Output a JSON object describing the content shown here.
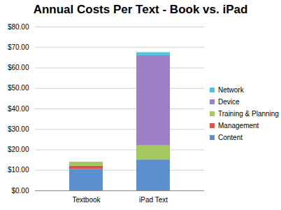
{
  "chart_data": {
    "type": "bar",
    "title": "Annual Costs Per Text - Book vs. iPad",
    "categories": [
      "Textbook",
      "iPad Text"
    ],
    "series": [
      {
        "name": "Content",
        "color": "#5b8fd0",
        "values": [
          10.5,
          15
        ]
      },
      {
        "name": "Management",
        "color": "#d9534f",
        "values": [
          1.5,
          0
        ]
      },
      {
        "name": "Training & Planning",
        "color": "#a5c75f",
        "values": [
          2,
          7
        ]
      },
      {
        "name": "Device",
        "color": "#9c7fc4",
        "values": [
          0,
          44
        ]
      },
      {
        "name": "Network",
        "color": "#4fc3dd",
        "values": [
          0,
          1.5
        ]
      }
    ],
    "stacked": true,
    "legend": "right",
    "grid": true,
    "ylim": [
      0,
      80
    ],
    "yticks": [
      {
        "value": 0,
        "label": "$0.00"
      },
      {
        "value": 10,
        "label": "$10.00"
      },
      {
        "value": 20,
        "label": "$20.00"
      },
      {
        "value": 30,
        "label": "$30.00"
      },
      {
        "value": 40,
        "label": "$40.00"
      },
      {
        "value": 50,
        "label": "$50.00"
      },
      {
        "value": 60,
        "label": "$60.00"
      },
      {
        "value": 70,
        "label": "$70.00"
      },
      {
        "value": 80,
        "label": "$80.00"
      }
    ]
  }
}
